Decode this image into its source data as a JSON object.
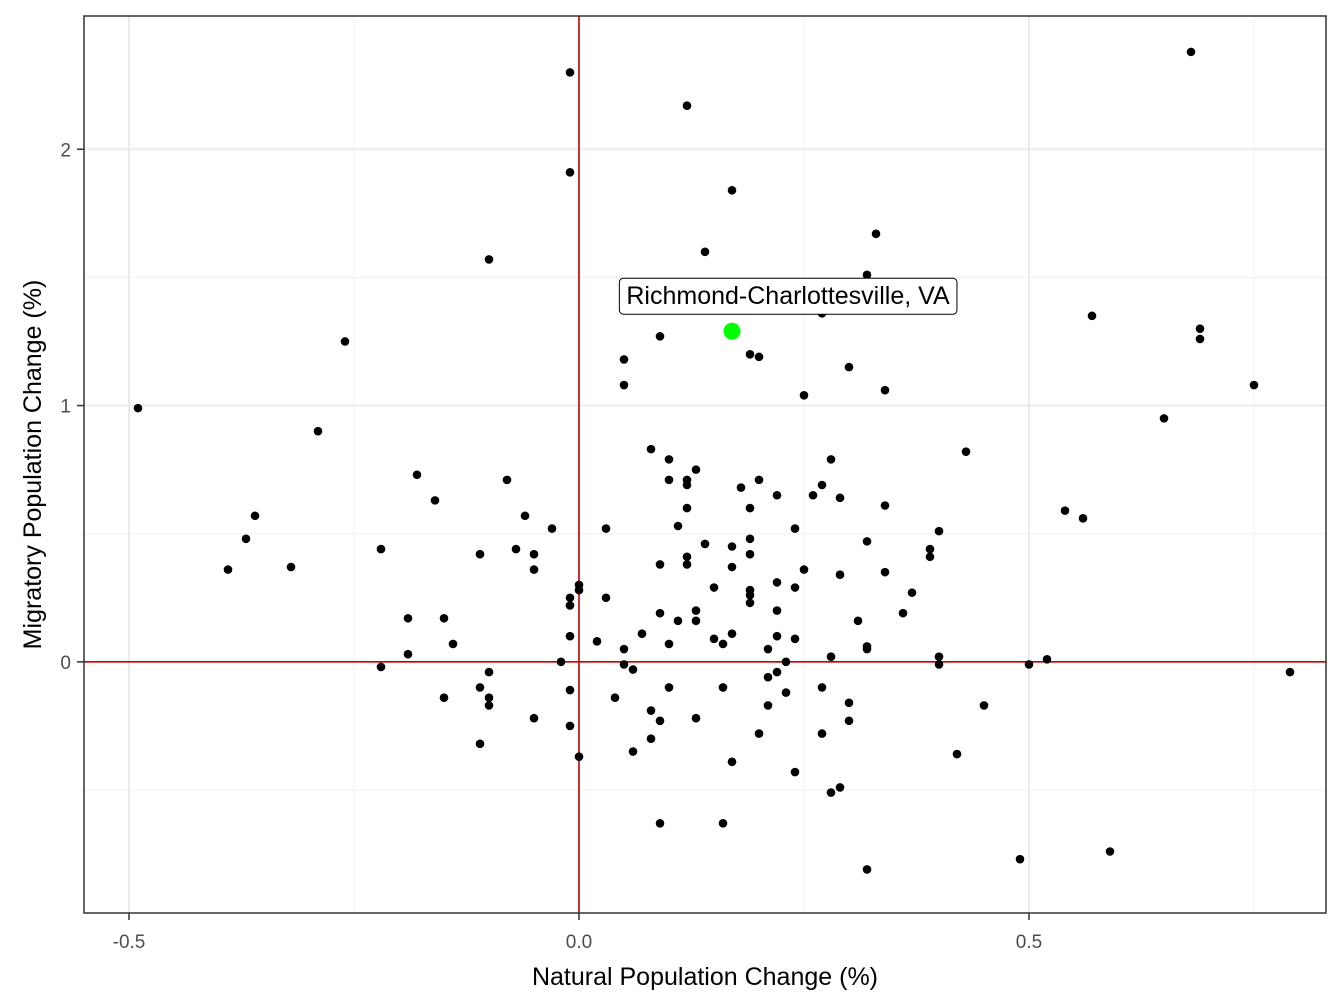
{
  "chart_data": {
    "type": "scatter",
    "xlabel": "Natural Population Change (%)",
    "ylabel": "Migratory Population Change (%)",
    "xlim": [
      -0.55,
      0.83
    ],
    "ylim": [
      -0.98,
      2.52
    ],
    "x_ticks": [
      -0.5,
      0.0,
      0.5
    ],
    "x_tick_labels": [
      "-0.5",
      "0.0",
      "0.5"
    ],
    "y_ticks": [
      0,
      1,
      2
    ],
    "y_tick_labels": [
      "0",
      "1",
      "2"
    ],
    "x_minor": [
      -0.25,
      0.25,
      0.75
    ],
    "y_minor": [
      -0.5,
      0.5,
      1.5
    ],
    "grid": true,
    "reference_lines": {
      "x": 0,
      "y": 0,
      "color": "#cc0000"
    },
    "point_color": "#000000",
    "highlight": {
      "label": "Richmond-Charlottesville, VA",
      "x": 0.17,
      "y": 1.29,
      "color": "#00ff00"
    },
    "points": [
      [
        -0.49,
        0.99
      ],
      [
        -0.39,
        0.36
      ],
      [
        -0.37,
        0.48
      ],
      [
        -0.36,
        0.57
      ],
      [
        -0.32,
        0.37
      ],
      [
        -0.29,
        0.9
      ],
      [
        -0.26,
        1.25
      ],
      [
        -0.22,
        0.44
      ],
      [
        -0.22,
        -0.02
      ],
      [
        -0.19,
        0.17
      ],
      [
        -0.19,
        0.03
      ],
      [
        -0.18,
        0.73
      ],
      [
        -0.16,
        0.63
      ],
      [
        -0.15,
        0.17
      ],
      [
        -0.15,
        -0.14
      ],
      [
        -0.14,
        0.07
      ],
      [
        -0.11,
        0.42
      ],
      [
        -0.11,
        -0.1
      ],
      [
        -0.11,
        -0.32
      ],
      [
        -0.1,
        -0.04
      ],
      [
        -0.1,
        -0.14
      ],
      [
        -0.1,
        -0.17
      ],
      [
        -0.1,
        1.57
      ],
      [
        -0.08,
        0.71
      ],
      [
        -0.07,
        0.44
      ],
      [
        -0.06,
        0.57
      ],
      [
        -0.05,
        0.42
      ],
      [
        -0.05,
        0.36
      ],
      [
        -0.05,
        -0.22
      ],
      [
        -0.03,
        0.52
      ],
      [
        -0.02,
        0.0
      ],
      [
        -0.01,
        2.3
      ],
      [
        -0.01,
        1.91
      ],
      [
        -0.01,
        0.25
      ],
      [
        -0.01,
        0.22
      ],
      [
        -0.01,
        0.1
      ],
      [
        -0.01,
        -0.11
      ],
      [
        -0.01,
        -0.25
      ],
      [
        0.0,
        0.3
      ],
      [
        0.0,
        0.28
      ],
      [
        0.0,
        -0.37
      ],
      [
        0.02,
        0.08
      ],
      [
        0.03,
        0.52
      ],
      [
        0.03,
        0.25
      ],
      [
        0.04,
        -0.14
      ],
      [
        0.05,
        1.18
      ],
      [
        0.05,
        1.08
      ],
      [
        0.05,
        0.05
      ],
      [
        0.05,
        -0.01
      ],
      [
        0.06,
        -0.03
      ],
      [
        0.06,
        -0.35
      ],
      [
        0.07,
        0.11
      ],
      [
        0.08,
        0.83
      ],
      [
        0.08,
        -0.19
      ],
      [
        0.08,
        -0.3
      ],
      [
        0.09,
        1.27
      ],
      [
        0.09,
        0.38
      ],
      [
        0.09,
        0.19
      ],
      [
        0.09,
        -0.23
      ],
      [
        0.09,
        -0.63
      ],
      [
        0.1,
        0.79
      ],
      [
        0.1,
        0.71
      ],
      [
        0.1,
        0.07
      ],
      [
        0.1,
        -0.1
      ],
      [
        0.11,
        0.53
      ],
      [
        0.11,
        0.16
      ],
      [
        0.12,
        2.17
      ],
      [
        0.12,
        0.71
      ],
      [
        0.12,
        0.69
      ],
      [
        0.12,
        0.6
      ],
      [
        0.12,
        0.41
      ],
      [
        0.12,
        0.38
      ],
      [
        0.13,
        0.75
      ],
      [
        0.13,
        0.2
      ],
      [
        0.13,
        0.16
      ],
      [
        0.13,
        -0.22
      ],
      [
        0.14,
        1.6
      ],
      [
        0.14,
        0.46
      ],
      [
        0.15,
        0.29
      ],
      [
        0.15,
        0.09
      ],
      [
        0.16,
        0.07
      ],
      [
        0.16,
        -0.1
      ],
      [
        0.16,
        -0.63
      ],
      [
        0.17,
        1.84
      ],
      [
        0.17,
        0.45
      ],
      [
        0.17,
        0.37
      ],
      [
        0.17,
        0.11
      ],
      [
        0.17,
        -0.39
      ],
      [
        0.18,
        0.68
      ],
      [
        0.19,
        1.2
      ],
      [
        0.19,
        0.6
      ],
      [
        0.19,
        0.48
      ],
      [
        0.19,
        0.42
      ],
      [
        0.19,
        0.28
      ],
      [
        0.19,
        0.26
      ],
      [
        0.19,
        0.23
      ],
      [
        0.2,
        1.19
      ],
      [
        0.2,
        0.71
      ],
      [
        0.2,
        -0.28
      ],
      [
        0.21,
        0.05
      ],
      [
        0.21,
        -0.06
      ],
      [
        0.21,
        -0.17
      ],
      [
        0.22,
        0.65
      ],
      [
        0.22,
        0.31
      ],
      [
        0.22,
        0.2
      ],
      [
        0.22,
        0.1
      ],
      [
        0.22,
        -0.04
      ],
      [
        0.23,
        0.0
      ],
      [
        0.23,
        -0.12
      ],
      [
        0.24,
        0.52
      ],
      [
        0.24,
        0.29
      ],
      [
        0.24,
        0.09
      ],
      [
        0.24,
        -0.43
      ],
      [
        0.25,
        1.04
      ],
      [
        0.25,
        0.36
      ],
      [
        0.26,
        0.65
      ],
      [
        0.27,
        1.36
      ],
      [
        0.27,
        0.69
      ],
      [
        0.27,
        -0.1
      ],
      [
        0.27,
        -0.28
      ],
      [
        0.28,
        0.79
      ],
      [
        0.28,
        0.02
      ],
      [
        0.28,
        -0.51
      ],
      [
        0.29,
        0.64
      ],
      [
        0.29,
        0.34
      ],
      [
        0.29,
        -0.49
      ],
      [
        0.3,
        1.15
      ],
      [
        0.3,
        -0.16
      ],
      [
        0.3,
        -0.23
      ],
      [
        0.31,
        0.16
      ],
      [
        0.32,
        1.51
      ],
      [
        0.32,
        0.47
      ],
      [
        0.32,
        0.06
      ],
      [
        0.32,
        0.05
      ],
      [
        0.32,
        -0.81
      ],
      [
        0.33,
        1.67
      ],
      [
        0.34,
        1.06
      ],
      [
        0.34,
        0.61
      ],
      [
        0.34,
        0.35
      ],
      [
        0.36,
        0.19
      ],
      [
        0.37,
        0.27
      ],
      [
        0.39,
        0.44
      ],
      [
        0.39,
        0.41
      ],
      [
        0.4,
        0.51
      ],
      [
        0.4,
        0.02
      ],
      [
        0.4,
        -0.01
      ],
      [
        0.42,
        -0.36
      ],
      [
        0.43,
        0.82
      ],
      [
        0.45,
        -0.17
      ],
      [
        0.49,
        -0.77
      ],
      [
        0.5,
        -0.01
      ],
      [
        0.52,
        0.01
      ],
      [
        0.54,
        0.59
      ],
      [
        0.56,
        0.56
      ],
      [
        0.57,
        1.35
      ],
      [
        0.59,
        -0.74
      ],
      [
        0.65,
        0.95
      ],
      [
        0.68,
        2.38
      ],
      [
        0.69,
        1.3
      ],
      [
        0.69,
        1.26
      ],
      [
        0.75,
        1.08
      ],
      [
        0.79,
        -0.04
      ]
    ]
  }
}
